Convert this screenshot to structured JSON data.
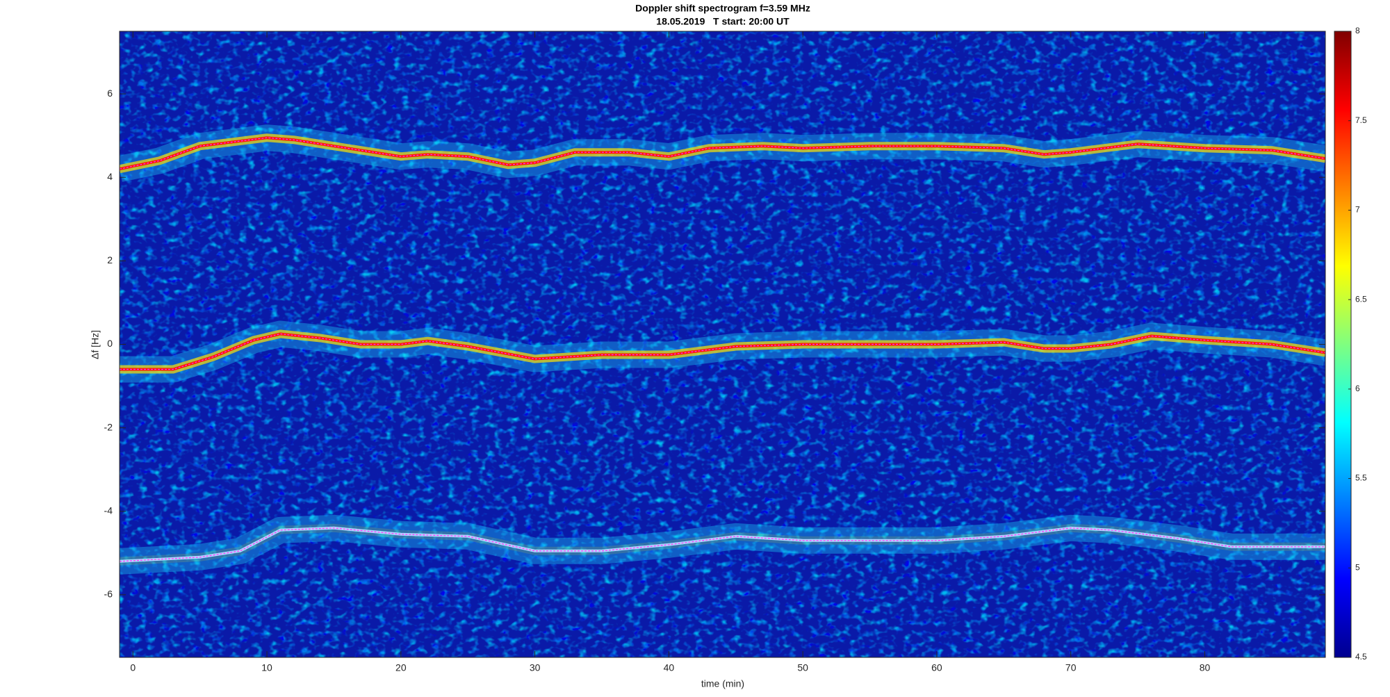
{
  "chart_data": {
    "type": "spectrogram",
    "title": "Doppler shift spectrogram f=3.59 MHz",
    "subtitle": "18.05.2019   T start: 20:00 UT",
    "xlabel": "time (min)",
    "ylabel": "Δf [Hz]",
    "xlim": [
      -1,
      89
    ],
    "xticks": [
      0,
      10,
      20,
      30,
      40,
      50,
      60,
      70,
      80
    ],
    "ylim": [
      -7.5,
      7.5
    ],
    "yticks": [
      -6,
      -4,
      -2,
      0,
      2,
      4,
      6
    ],
    "clim": [
      4.5,
      8
    ],
    "cticks": [
      4.5,
      5,
      5.5,
      6,
      6.5,
      7,
      7.5,
      8
    ],
    "series": [
      {
        "color": "#ff1a00",
        "x": [
          -1,
          2,
          5,
          10,
          12,
          15,
          20,
          22,
          25,
          28,
          30,
          33,
          37,
          40,
          43,
          47,
          50,
          55,
          60,
          65,
          68,
          70,
          75,
          80,
          85,
          89
        ],
        "values": [
          4.2,
          4.4,
          4.75,
          4.95,
          4.9,
          4.75,
          4.5,
          4.55,
          4.5,
          4.3,
          4.35,
          4.6,
          4.6,
          4.5,
          4.7,
          4.75,
          4.7,
          4.75,
          4.75,
          4.7,
          4.55,
          4.6,
          4.8,
          4.7,
          4.65,
          4.45
        ]
      },
      {
        "color": "#ff1a00",
        "x": [
          -1,
          3,
          6,
          9,
          11,
          14,
          17,
          20,
          22,
          25,
          30,
          35,
          40,
          45,
          50,
          55,
          60,
          65,
          68,
          70,
          73,
          76,
          80,
          85,
          89
        ],
        "values": [
          -0.6,
          -0.6,
          -0.3,
          0.1,
          0.25,
          0.15,
          0,
          0,
          0.08,
          -0.05,
          -0.35,
          -0.25,
          -0.25,
          -0.05,
          0,
          0,
          0,
          0.05,
          -0.1,
          -0.1,
          0,
          0.2,
          0.1,
          0,
          -0.2
        ]
      },
      {
        "color": "#b0d8ff",
        "x": [
          -1,
          5,
          8,
          11,
          15,
          20,
          25,
          30,
          35,
          40,
          45,
          50,
          55,
          60,
          65,
          70,
          73,
          78,
          82,
          89
        ],
        "values": [
          -5.2,
          -5.1,
          -4.95,
          -4.45,
          -4.4,
          -4.55,
          -4.6,
          -4.95,
          -4.95,
          -4.8,
          -4.6,
          -4.7,
          -4.7,
          -4.7,
          -4.6,
          -4.4,
          -4.45,
          -4.65,
          -4.85,
          -4.85
        ]
      }
    ]
  }
}
